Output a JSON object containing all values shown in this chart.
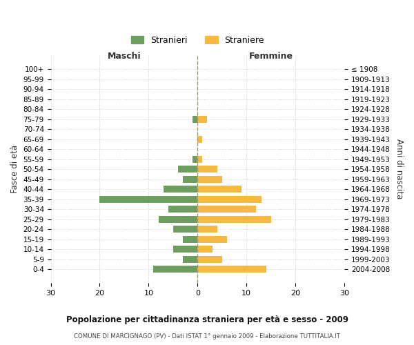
{
  "age_groups": [
    "100+",
    "95-99",
    "90-94",
    "85-89",
    "80-84",
    "75-79",
    "70-74",
    "65-69",
    "60-64",
    "55-59",
    "50-54",
    "45-49",
    "40-44",
    "35-39",
    "30-34",
    "25-29",
    "20-24",
    "15-19",
    "10-14",
    "5-9",
    "0-4"
  ],
  "birth_years": [
    "≤ 1908",
    "1909-1913",
    "1914-1918",
    "1919-1923",
    "1924-1928",
    "1929-1933",
    "1934-1938",
    "1939-1943",
    "1944-1948",
    "1949-1953",
    "1954-1958",
    "1959-1963",
    "1964-1968",
    "1969-1973",
    "1974-1978",
    "1979-1983",
    "1984-1988",
    "1989-1993",
    "1994-1998",
    "1999-2003",
    "2004-2008"
  ],
  "maschi": [
    0,
    0,
    0,
    0,
    0,
    1,
    0,
    0,
    0,
    1,
    4,
    3,
    7,
    20,
    6,
    8,
    5,
    3,
    5,
    3,
    9
  ],
  "femmine": [
    0,
    0,
    0,
    0,
    0,
    2,
    0,
    1,
    0,
    1,
    4,
    5,
    9,
    13,
    12,
    15,
    4,
    6,
    3,
    5,
    14
  ],
  "color_maschi": "#6d9e5f",
  "color_femmine": "#f5b942",
  "title": "Popolazione per cittadinanza straniera per età e sesso - 2009",
  "subtitle": "COMUNE DI MARCIGNAGO (PV) - Dati ISTAT 1° gennaio 2009 - Elaborazione TUTTITALIA.IT",
  "xlabel_left": "Maschi",
  "xlabel_right": "Femmine",
  "ylabel_left": "Fasce di età",
  "ylabel_right": "Anni di nascita",
  "legend_maschi": "Stranieri",
  "legend_femmine": "Straniere",
  "xlim": 30,
  "background_color": "#ffffff",
  "grid_color": "#cccccc"
}
